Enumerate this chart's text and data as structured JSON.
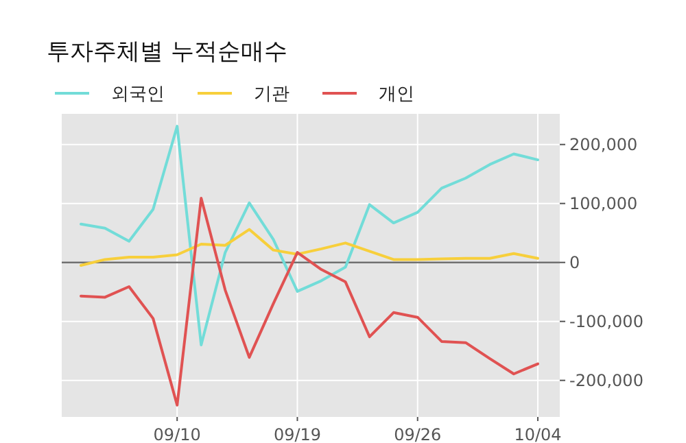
{
  "chart_data": {
    "type": "line",
    "title": "투자주체별 누적순매수",
    "categories": [
      null,
      null,
      null,
      null,
      "09/10",
      null,
      null,
      null,
      null,
      "09/19",
      null,
      null,
      null,
      null,
      "09/26",
      null,
      null,
      null,
      null,
      "10/04"
    ],
    "series": [
      {
        "name": "외국인",
        "color": "#72dcd8",
        "values": [
          65000,
          58000,
          36000,
          90000,
          231000,
          -140000,
          17000,
          101000,
          39000,
          -49000,
          -31000,
          -8000,
          98000,
          67000,
          85000,
          126000,
          143000,
          166000,
          184000,
          174000
        ]
      },
      {
        "name": "기관",
        "color": "#f7cf3b",
        "values": [
          -5000,
          5000,
          9000,
          9000,
          13000,
          31000,
          29000,
          56000,
          21000,
          14000,
          23000,
          33000,
          19000,
          5000,
          5000,
          6000,
          7000,
          7000,
          15000,
          7000
        ]
      },
      {
        "name": "개인",
        "color": "#e05252",
        "values": [
          -57000,
          -59000,
          -41000,
          -95000,
          -242000,
          109000,
          -47000,
          -161000,
          -70000,
          17000,
          -12000,
          -33000,
          -126000,
          -85000,
          -93000,
          -134000,
          -136000,
          -163000,
          -189000,
          -172000
        ]
      }
    ],
    "ylim": [
      -262000,
      252000
    ],
    "yticks": [
      {
        "value": -200000,
        "label": "-200,000"
      },
      {
        "value": -100000,
        "label": "-100,000"
      },
      {
        "value": 0,
        "label": "0"
      },
      {
        "value": 100000,
        "label": "100,000"
      },
      {
        "value": 200000,
        "label": "200,000"
      }
    ],
    "grid": true,
    "legend": "top left",
    "marker": "none",
    "line_style": "solid",
    "ref_lines": [
      {
        "axis": "y",
        "value": 0,
        "color": "#707070"
      }
    ]
  }
}
